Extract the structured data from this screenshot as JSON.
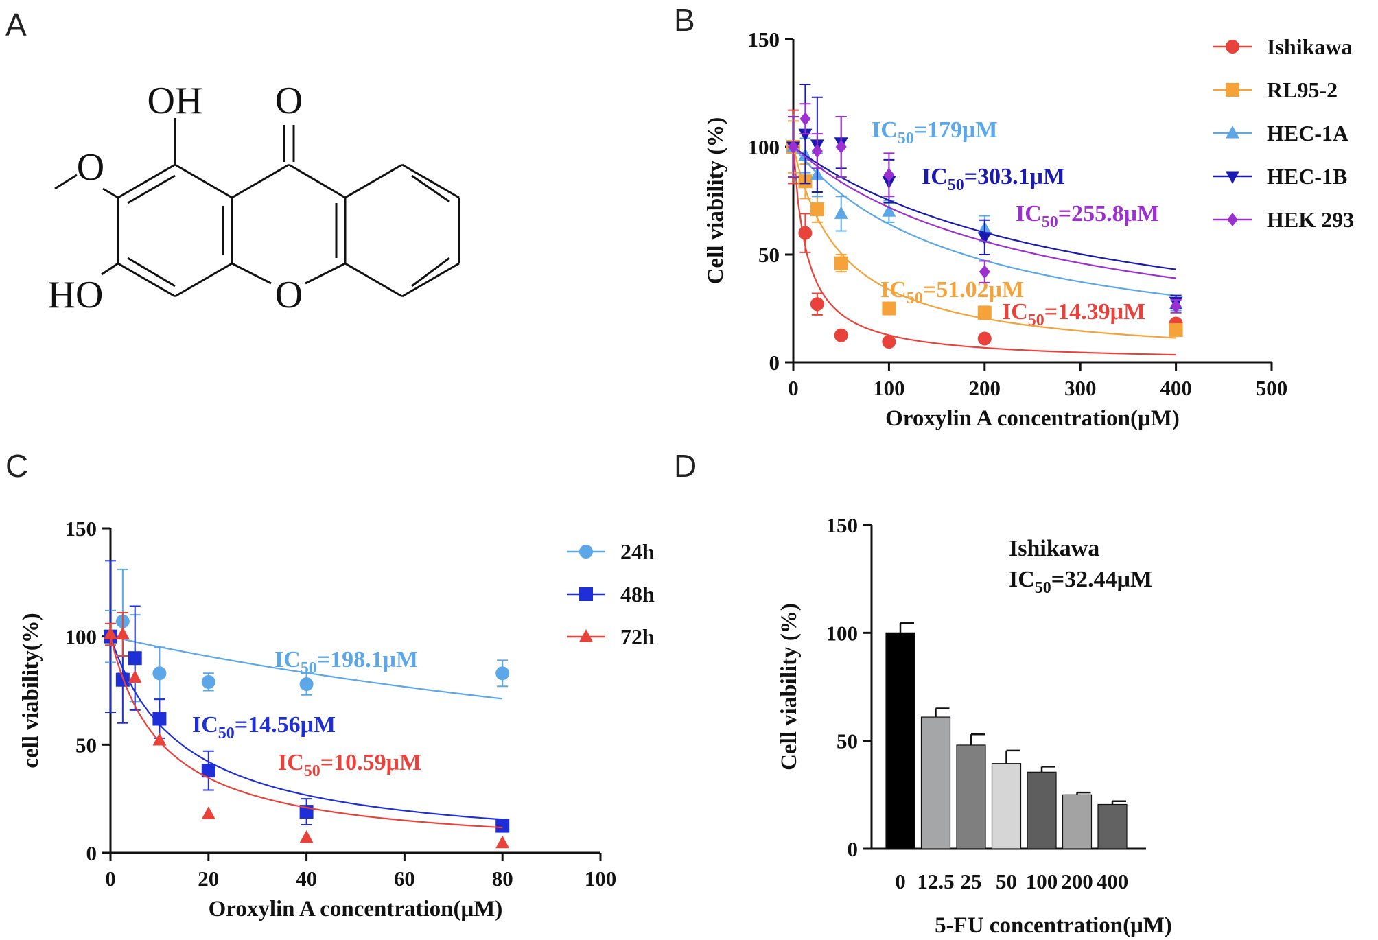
{
  "panel_labels": {
    "a": "A",
    "b": "B",
    "c": "C",
    "d": "D"
  },
  "structure": {
    "labels": {
      "oh_top": "OH",
      "o_carbonyl": "O",
      "o_methoxy": "O",
      "ho_left": "HO",
      "o_ring": "O"
    }
  },
  "colors": {
    "red": "#e8423b",
    "orange": "#f5a238",
    "lightblue": "#5ba7e8",
    "darkblue": "#1a1ab0",
    "purple": "#9b2fd0",
    "blue48": "#1f2fd8"
  },
  "chart_data": [
    {
      "id": "B",
      "type": "scatter",
      "xlabel": "Oroxylin A concentration(μM)",
      "ylabel": "Cell viability (%)",
      "xlim": [
        0,
        500
      ],
      "ylim": [
        0,
        150
      ],
      "xticks": [
        "0",
        "100",
        "200",
        "300",
        "400",
        "500"
      ],
      "yticks": [
        "0",
        "50",
        "100",
        "150"
      ],
      "legend_position": "right",
      "series": [
        {
          "name": "Ishikawa",
          "color": "#e8423b",
          "marker": "circle",
          "ic50": 14.39,
          "annotation": {
            "pre": "IC",
            "sub": "50",
            "post": "=14.39μM"
          },
          "x": [
            0,
            12.5,
            25,
            50,
            100,
            200,
            400
          ],
          "y": [
            100,
            60,
            27,
            12.5,
            9.5,
            11,
            18
          ],
          "err": [
            17,
            9,
            5,
            0,
            0,
            0,
            0
          ]
        },
        {
          "name": "RL95-2",
          "color": "#f5a238",
          "marker": "square",
          "ic50": 51.02,
          "annotation": {
            "pre": "IC",
            "sub": "50",
            "post": "=51.02μM"
          },
          "x": [
            0,
            12.5,
            25,
            50,
            100,
            200,
            400
          ],
          "y": [
            100,
            84,
            71,
            46,
            25,
            23,
            15
          ],
          "err": [
            12,
            8,
            6,
            4,
            0,
            3,
            0
          ]
        },
        {
          "name": "HEC-1A",
          "color": "#5ba7e8",
          "marker": "triangle",
          "ic50": 179,
          "annotation": {
            "pre": "IC",
            "sub": "50",
            "post": "=179μM"
          },
          "x": [
            0,
            12.5,
            25,
            50,
            100,
            200,
            400
          ],
          "y": [
            100,
            96,
            87,
            69,
            70,
            62,
            27
          ],
          "err": [
            14,
            8,
            10,
            8,
            5,
            6,
            3
          ]
        },
        {
          "name": "HEC-1B",
          "color": "#1a1ab0",
          "marker": "triangle-down",
          "ic50": 303.1,
          "annotation": {
            "pre": "IC",
            "sub": "50",
            "post": "=303.1μM"
          },
          "x": [
            0,
            12.5,
            25,
            50,
            100,
            200,
            400
          ],
          "y": [
            100,
            106,
            101,
            102,
            84,
            58,
            28
          ],
          "err": [
            14,
            23,
            22,
            12,
            10,
            8,
            3
          ]
        },
        {
          "name": "HEK 293",
          "color": "#9b2fd0",
          "marker": "diamond",
          "ic50": 255.8,
          "annotation": {
            "pre": "IC",
            "sub": "50",
            "post": "=255.8μM"
          },
          "x": [
            0,
            12.5,
            25,
            50,
            100,
            200,
            400
          ],
          "y": [
            100,
            113,
            98,
            100,
            87,
            42,
            26
          ],
          "err": [
            14,
            7,
            8,
            14,
            10,
            5,
            3
          ]
        }
      ]
    },
    {
      "id": "C",
      "type": "scatter",
      "xlabel": "Oroxylin A concentration(μM)",
      "ylabel": "cell viability(%)",
      "xlim": [
        0,
        100
      ],
      "ylim": [
        0,
        150
      ],
      "xticks": [
        "0",
        "20",
        "40",
        "60",
        "80",
        "100"
      ],
      "yticks": [
        "0",
        "50",
        "100",
        "150"
      ],
      "legend_position": "right",
      "series": [
        {
          "name": "24h",
          "color": "#5ba7e8",
          "marker": "circle",
          "ic50": 198.1,
          "annotation": {
            "pre": "IC",
            "sub": "50",
            "post": "=198.1μM"
          },
          "x": [
            0,
            2.5,
            5,
            10,
            20,
            40,
            80
          ],
          "y": [
            100,
            107,
            90,
            83,
            79,
            78,
            83
          ],
          "err": [
            12,
            24,
            20,
            12,
            4,
            5,
            6
          ]
        },
        {
          "name": "48h",
          "color": "#1f2fd8",
          "marker": "square",
          "ic50": 14.56,
          "annotation": {
            "pre": "IC",
            "sub": "50",
            "post": "=14.56μM"
          },
          "x": [
            0,
            2.5,
            5,
            10,
            20,
            40,
            80
          ],
          "y": [
            100,
            80,
            90,
            62,
            38,
            19,
            12.5
          ],
          "err": [
            35,
            20,
            24,
            9,
            9,
            6,
            0
          ]
        },
        {
          "name": "72h",
          "color": "#e8423b",
          "marker": "triangle",
          "ic50": 10.59,
          "annotation": {
            "pre": "IC",
            "sub": "50",
            "post": "=10.59μM"
          },
          "x": [
            0,
            2.5,
            5,
            10,
            20,
            40,
            80
          ],
          "y": [
            101,
            101,
            81,
            52,
            18,
            7,
            4.5
          ],
          "err": [
            5,
            10,
            0,
            0,
            0,
            0,
            0
          ]
        }
      ]
    },
    {
      "id": "D",
      "type": "bar",
      "xlabel": "5-FU concentration(μM)",
      "ylabel": "Cell viability (%)",
      "ylim": [
        0,
        150
      ],
      "yticks": [
        "0",
        "50",
        "100",
        "150"
      ],
      "categories": [
        "0",
        "12.5",
        "25",
        "50",
        "100",
        "200",
        "400"
      ],
      "values": [
        100,
        61,
        48,
        39.5,
        35.5,
        25,
        20.5
      ],
      "errors": [
        4.5,
        4,
        5,
        6,
        2.5,
        1,
        1.5
      ],
      "bar_colors": [
        "#000000",
        "#a5a6a8",
        "#7f7f80",
        "#d6d6d6",
        "#5e5e5e",
        "#a3a3a3",
        "#626262"
      ],
      "annotation": {
        "title": "Ishikawa",
        "pre": "IC",
        "sub": "50",
        "post": "=32.44μM"
      }
    }
  ]
}
